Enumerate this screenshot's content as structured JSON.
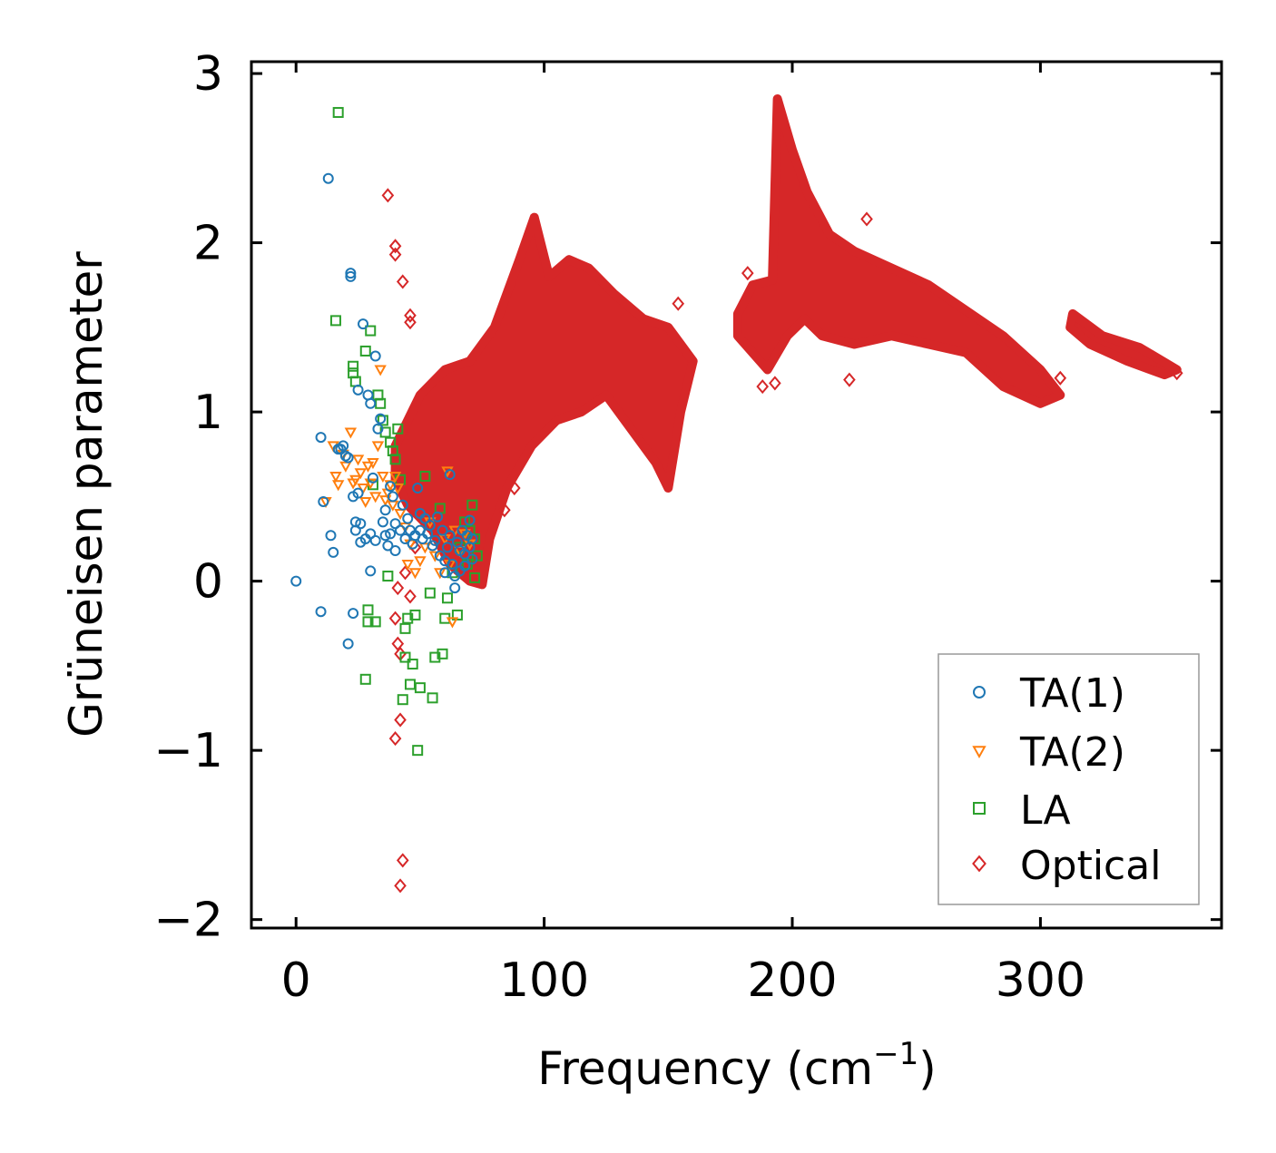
{
  "chart_data": {
    "type": "scatter",
    "title": "",
    "xlabel": "Frequency (cm",
    "xlabel_sup": "−1",
    "xlabel_close": ")",
    "ylabel": "Grüneisen parameter",
    "xlim": [
      -18,
      373
    ],
    "ylim": [
      -2.05,
      3.07
    ],
    "xticks": [
      0,
      100,
      200,
      300
    ],
    "xtick_labels": [
      "0",
      "100",
      "200",
      "300"
    ],
    "yticks": [
      -2,
      -1,
      0,
      1,
      2,
      3
    ],
    "ytick_labels": [
      "−2",
      "−1",
      "0",
      "1",
      "2",
      "3"
    ],
    "legend_position": "lower-right",
    "series": [
      {
        "name": "TA(1)",
        "marker": "circle",
        "color": "#1f77b4",
        "points": [
          [
            0,
            0
          ],
          [
            10,
            0.85
          ],
          [
            11,
            0.47
          ],
          [
            13,
            2.38
          ],
          [
            14,
            0.27
          ],
          [
            15,
            0.17
          ],
          [
            10,
            -0.18
          ],
          [
            17,
            0.78
          ],
          [
            18,
            0.78
          ],
          [
            19,
            0.8
          ],
          [
            20,
            0.74
          ],
          [
            21,
            0.73
          ],
          [
            21,
            -0.37
          ],
          [
            22,
            1.8
          ],
          [
            22,
            1.82
          ],
          [
            23,
            0.5
          ],
          [
            23,
            -0.19
          ],
          [
            24,
            0.35
          ],
          [
            24,
            0.3
          ],
          [
            25,
            0.52
          ],
          [
            25,
            1.13
          ],
          [
            26,
            0.23
          ],
          [
            26,
            0.34
          ],
          [
            27,
            1.52
          ],
          [
            28,
            0.25
          ],
          [
            29,
            1.1
          ],
          [
            30,
            0.28
          ],
          [
            30,
            0.06
          ],
          [
            30,
            1.05
          ],
          [
            31,
            0.61
          ],
          [
            32,
            0.24
          ],
          [
            32,
            1.33
          ],
          [
            33,
            0.9
          ],
          [
            34,
            0.96
          ],
          [
            35,
            0.35
          ],
          [
            36,
            0.27
          ],
          [
            36,
            0.42
          ],
          [
            37,
            0.21
          ],
          [
            38,
            0.28
          ],
          [
            38,
            0.56
          ],
          [
            39,
            0.5
          ],
          [
            40,
            0.34
          ],
          [
            40,
            0.18
          ],
          [
            42,
            0.3
          ],
          [
            43,
            0.45
          ],
          [
            44,
            0.25
          ],
          [
            45,
            0.37
          ],
          [
            46,
            0.3
          ],
          [
            47,
            0.22
          ],
          [
            48,
            0.27
          ],
          [
            49,
            0.55
          ],
          [
            50,
            0.4
          ],
          [
            50,
            0.3
          ],
          [
            51,
            0.25
          ],
          [
            52,
            0.37
          ],
          [
            53,
            0.28
          ],
          [
            54,
            0.33
          ],
          [
            55,
            0.21
          ],
          [
            56,
            0.24
          ],
          [
            57,
            0.38
          ],
          [
            58,
            0.15
          ],
          [
            59,
            0.3
          ],
          [
            60,
            0.12
          ],
          [
            60,
            0.05
          ],
          [
            61,
            0.2
          ],
          [
            62,
            0.27
          ],
          [
            62,
            0.63
          ],
          [
            63,
            0.1
          ],
          [
            64,
            0.03
          ],
          [
            64,
            -0.04
          ],
          [
            65,
            0.23
          ],
          [
            66,
            0.18
          ],
          [
            66,
            0.06
          ],
          [
            67,
            0.3
          ],
          [
            68,
            0.16
          ],
          [
            68,
            0.09
          ],
          [
            69,
            0.27
          ],
          [
            70,
            0.2
          ],
          [
            70,
            0.36
          ],
          [
            71,
            0.13
          ],
          [
            71,
            0.25
          ]
        ]
      },
      {
        "name": "TA(2)",
        "marker": "triangle-down",
        "color": "#ff7f0e",
        "points": [
          [
            12,
            0.47
          ],
          [
            15,
            0.8
          ],
          [
            16,
            0.62
          ],
          [
            17,
            0.57
          ],
          [
            19,
            0.75
          ],
          [
            20,
            0.68
          ],
          [
            22,
            0.88
          ],
          [
            23,
            0.58
          ],
          [
            24,
            0.6
          ],
          [
            25,
            0.72
          ],
          [
            26,
            0.64
          ],
          [
            27,
            0.55
          ],
          [
            28,
            0.47
          ],
          [
            29,
            0.68
          ],
          [
            30,
            0.58
          ],
          [
            31,
            0.7
          ],
          [
            32,
            0.5
          ],
          [
            33,
            0.8
          ],
          [
            34,
            1.25
          ],
          [
            35,
            0.62
          ],
          [
            36,
            0.48
          ],
          [
            37,
            0.52
          ],
          [
            38,
            0.57
          ],
          [
            39,
            0.45
          ],
          [
            40,
            0.62
          ],
          [
            41,
            0.55
          ],
          [
            42,
            0.4
          ],
          [
            44,
            0.32
          ],
          [
            45,
            0.1
          ],
          [
            46,
            0.22
          ],
          [
            48,
            0.05
          ],
          [
            50,
            0.12
          ],
          [
            52,
            0.2
          ],
          [
            54,
            0.35
          ],
          [
            56,
            0.15
          ],
          [
            58,
            0.05
          ],
          [
            60,
            0.25
          ],
          [
            61,
            0.65
          ],
          [
            62,
            0.1
          ],
          [
            63,
            -0.24
          ],
          [
            64,
            0.3
          ],
          [
            66,
            0.18
          ],
          [
            68,
            0.28
          ],
          [
            70,
            0.22
          ]
        ]
      },
      {
        "name": "LA",
        "marker": "square",
        "color": "#2ca02c",
        "points": [
          [
            16,
            1.54
          ],
          [
            17,
            2.77
          ],
          [
            23,
            1.27
          ],
          [
            23,
            1.23
          ],
          [
            24,
            1.18
          ],
          [
            28,
            1.36
          ],
          [
            28,
            -0.58
          ],
          [
            29,
            -0.17
          ],
          [
            29,
            -0.24
          ],
          [
            30,
            1.48
          ],
          [
            31,
            0.57
          ],
          [
            32,
            -0.24
          ],
          [
            33,
            1.1
          ],
          [
            34,
            1.05
          ],
          [
            35,
            0.95
          ],
          [
            36,
            0.88
          ],
          [
            37,
            0.03
          ],
          [
            38,
            0.82
          ],
          [
            39,
            0.77
          ],
          [
            40,
            0.72
          ],
          [
            41,
            0.9
          ],
          [
            42,
            0.6
          ],
          [
            43,
            -0.7
          ],
          [
            44,
            -0.28
          ],
          [
            44,
            -0.45
          ],
          [
            45,
            -0.22
          ],
          [
            46,
            -0.61
          ],
          [
            47,
            -0.49
          ],
          [
            48,
            -0.2
          ],
          [
            49,
            -1.0
          ],
          [
            50,
            -0.63
          ],
          [
            52,
            0.62
          ],
          [
            54,
            -0.07
          ],
          [
            55,
            -0.69
          ],
          [
            56,
            -0.45
          ],
          [
            58,
            0.43
          ],
          [
            59,
            -0.43
          ],
          [
            60,
            -0.22
          ],
          [
            61,
            -0.1
          ],
          [
            63,
            0.05
          ],
          [
            65,
            -0.2
          ],
          [
            66,
            0.2
          ],
          [
            68,
            0.35
          ],
          [
            69,
            0.1
          ],
          [
            70,
            0.3
          ],
          [
            71,
            0.45
          ],
          [
            72,
            0.25
          ],
          [
            72,
            0.02
          ],
          [
            73,
            0.15
          ]
        ]
      },
      {
        "name": "Optical",
        "marker": "diamond",
        "color": "#d62728",
        "points": [
          [
            37,
            2.28
          ],
          [
            40,
            1.98
          ],
          [
            40,
            1.93
          ],
          [
            43,
            1.77
          ],
          [
            46,
            1.57
          ],
          [
            46,
            1.53
          ],
          [
            40,
            -0.22
          ],
          [
            41,
            -0.04
          ],
          [
            41,
            -0.37
          ],
          [
            42,
            -0.43
          ],
          [
            42,
            -0.82
          ],
          [
            40,
            -0.93
          ],
          [
            43,
            -1.65
          ],
          [
            42,
            -1.8
          ],
          [
            44,
            0.05
          ],
          [
            46,
            -0.09
          ],
          [
            48,
            0.2
          ],
          [
            84,
            0.42
          ],
          [
            88,
            0.55
          ],
          [
            154,
            1.64
          ],
          [
            182,
            1.82
          ],
          [
            188,
            1.15
          ],
          [
            193,
            1.17
          ],
          [
            223,
            1.19
          ],
          [
            230,
            2.14
          ],
          [
            308,
            1.2
          ],
          [
            355,
            1.23
          ]
        ],
        "bands": [
          [
            [
              40,
              0.8
            ],
            [
              50,
              1.1
            ],
            [
              60,
              1.25
            ],
            [
              70,
              1.3
            ],
            [
              80,
              1.5
            ],
            [
              90,
              1.9
            ],
            [
              96,
              2.15
            ],
            [
              102,
              1.8
            ],
            [
              110,
              1.9
            ],
            [
              118,
              1.85
            ],
            [
              128,
              1.7
            ],
            [
              140,
              1.55
            ],
            [
              150,
              1.5
            ],
            [
              160,
              1.3
            ],
            [
              155,
              1.0
            ],
            [
              150,
              0.55
            ],
            [
              145,
              0.7
            ],
            [
              135,
              0.9
            ],
            [
              125,
              1.1
            ],
            [
              115,
              1.0
            ],
            [
              105,
              0.95
            ],
            [
              95,
              0.8
            ],
            [
              85,
              0.55
            ],
            [
              78,
              0.25
            ],
            [
              75,
              -0.02
            ],
            [
              70,
              0.0
            ],
            [
              62,
              0.1
            ],
            [
              55,
              0.3
            ],
            [
              45,
              0.45
            ],
            [
              40,
              0.6
            ]
          ],
          [
            [
              178,
              1.58
            ],
            [
              184,
              1.75
            ],
            [
              192,
              1.78
            ],
            [
              194,
              2.85
            ],
            [
              200,
              2.55
            ],
            [
              206,
              2.3
            ],
            [
              215,
              2.05
            ],
            [
              225,
              1.95
            ],
            [
              240,
              1.85
            ],
            [
              255,
              1.75
            ],
            [
              270,
              1.6
            ],
            [
              285,
              1.45
            ],
            [
              300,
              1.25
            ],
            [
              308,
              1.1
            ],
            [
              300,
              1.05
            ],
            [
              285,
              1.15
            ],
            [
              270,
              1.35
            ],
            [
              255,
              1.4
            ],
            [
              240,
              1.45
            ],
            [
              225,
              1.4
            ],
            [
              212,
              1.45
            ],
            [
              205,
              1.55
            ],
            [
              198,
              1.45
            ],
            [
              190,
              1.25
            ],
            [
              184,
              1.35
            ],
            [
              178,
              1.45
            ]
          ],
          [
            [
              313,
              1.58
            ],
            [
              325,
              1.45
            ],
            [
              340,
              1.38
            ],
            [
              355,
              1.25
            ],
            [
              350,
              1.22
            ],
            [
              335,
              1.3
            ],
            [
              320,
              1.4
            ],
            [
              312,
              1.5
            ]
          ]
        ]
      }
    ]
  }
}
